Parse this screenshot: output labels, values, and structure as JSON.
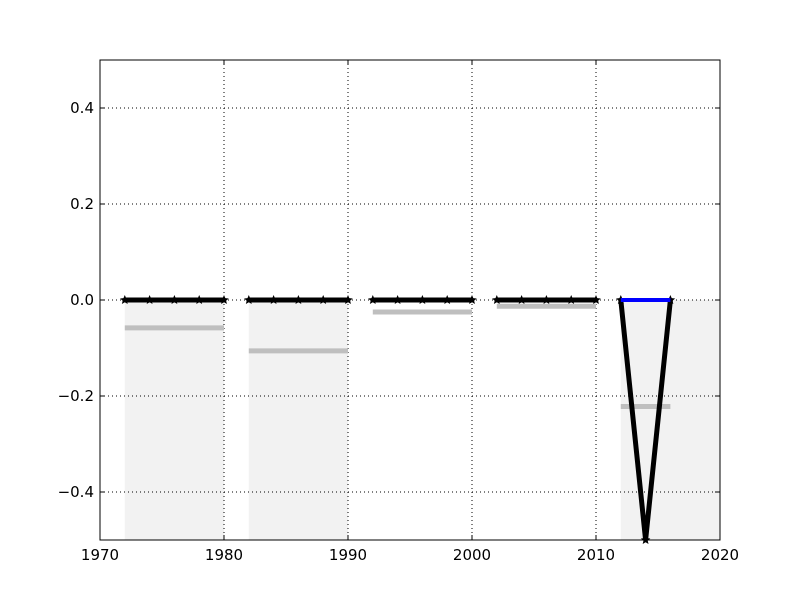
{
  "chart_data": {
    "type": "line",
    "title": "",
    "xlabel": "",
    "ylabel": "",
    "xlim": [
      1970,
      2020
    ],
    "ylim": [
      -0.5,
      0.5
    ],
    "grid": true,
    "x_ticks": [
      1970,
      1980,
      1990,
      2000,
      2010,
      2020
    ],
    "x_tick_labels": [
      "1970",
      "1980",
      "1990",
      "2000",
      "2010",
      "2020"
    ],
    "y_ticks": [
      -0.4,
      -0.2,
      0.0,
      0.2,
      0.4
    ],
    "y_tick_labels": [
      "−0.4",
      "−0.2",
      "0.0",
      "0.2",
      "0.4"
    ],
    "shaded_regions": [
      {
        "x0": 1972,
        "x1": 1980,
        "y0": -0.5,
        "y1": 0.0
      },
      {
        "x0": 1982,
        "x1": 1990,
        "y0": -0.5,
        "y1": 0.0
      },
      {
        "x0": 2012,
        "x1": 2020,
        "y0": -0.5,
        "y1": 0.0
      }
    ],
    "mean_segments": [
      {
        "x0": 1972,
        "x1": 1980,
        "y": -0.058
      },
      {
        "x0": 1982,
        "x1": 1990,
        "y": -0.106
      },
      {
        "x0": 1992,
        "x1": 2000,
        "y": -0.025
      },
      {
        "x0": 2002,
        "x1": 2010,
        "y": -0.013
      },
      {
        "x0": 2012,
        "x1": 2016,
        "y": -0.222
      }
    ],
    "series": [
      {
        "values": [
          {
            "x": 1972,
            "y": 0.0
          },
          {
            "x": 1974,
            "y": 0.0
          },
          {
            "x": 1976,
            "y": 0.0
          },
          {
            "x": 1978,
            "y": 0.0
          },
          {
            "x": 1980,
            "y": 0.0
          }
        ]
      },
      {
        "values": [
          {
            "x": 1982,
            "y": 0.0
          },
          {
            "x": 1984,
            "y": 0.0
          },
          {
            "x": 1986,
            "y": 0.0
          },
          {
            "x": 1988,
            "y": 0.0
          },
          {
            "x": 1990,
            "y": 0.0
          }
        ]
      },
      {
        "values": [
          {
            "x": 1992,
            "y": 0.0
          },
          {
            "x": 1994,
            "y": 0.0
          },
          {
            "x": 1996,
            "y": 0.0
          },
          {
            "x": 1998,
            "y": 0.0
          },
          {
            "x": 2000,
            "y": 0.0
          }
        ]
      },
      {
        "values": [
          {
            "x": 2002,
            "y": 0.0
          },
          {
            "x": 2004,
            "y": 0.0
          },
          {
            "x": 2006,
            "y": 0.0
          },
          {
            "x": 2008,
            "y": 0.0
          },
          {
            "x": 2010,
            "y": 0.0
          }
        ]
      },
      {
        "values": [
          {
            "x": 2012,
            "y": 0.0
          },
          {
            "x": 2014,
            "y": -0.5
          },
          {
            "x": 2016,
            "y": 0.0
          }
        ]
      }
    ],
    "highlight_segment": {
      "x0": 2012,
      "x1": 2016,
      "y": 0.0,
      "color": "#0000ff"
    },
    "colors": {
      "series": "#000000",
      "mean": "#bfbfbf",
      "shade": "#f2f2f2",
      "grid": "#000000",
      "highlight": "#0000ff"
    }
  }
}
